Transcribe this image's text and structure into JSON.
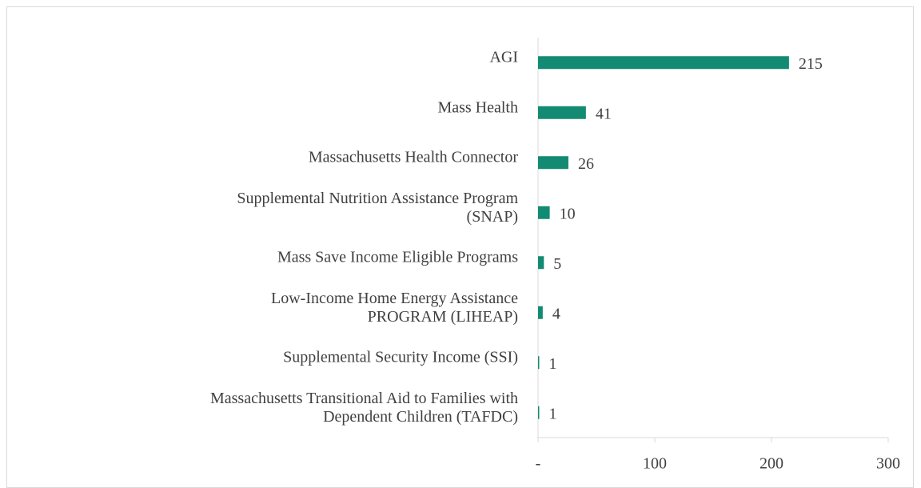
{
  "chart_data": {
    "type": "barh",
    "categories": [
      "AGI",
      "Mass Health",
      "Massachusetts Health Connector",
      "Supplemental Nutrition Assistance Program\n(SNAP)",
      "Mass Save Income Eligible Programs",
      "Low-Income Home Energy Assistance\nPROGRAM (LIHEAP)",
      "Supplemental Security Income (SSI)",
      "Massachusetts Transitional Aid to Families with\nDependent Children (TAFDC)"
    ],
    "values": [
      215,
      41,
      26,
      10,
      5,
      4,
      1,
      1
    ],
    "color": "#138a72",
    "xlim": [
      0,
      300
    ],
    "xticks": [
      {
        "value": 0,
        "label": "-"
      },
      100,
      200,
      300
    ]
  }
}
